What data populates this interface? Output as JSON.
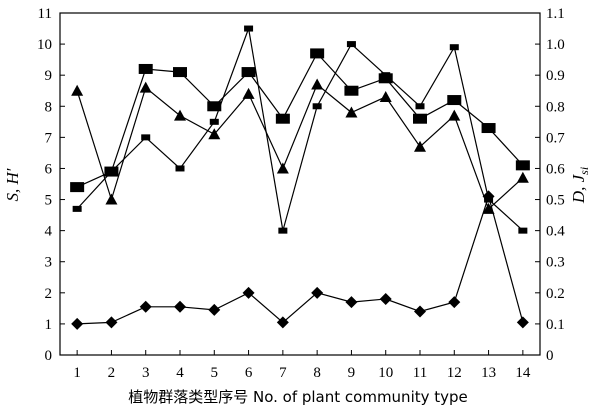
{
  "chart_data": {
    "type": "line",
    "x": [
      1,
      2,
      3,
      4,
      5,
      6,
      7,
      8,
      9,
      10,
      11,
      12,
      13,
      14
    ],
    "xlabel": "植物群落类型序号  No. of plant community type",
    "ylabel_left": "S, H′",
    "ylabel_right_main": "D, J",
    "ylabel_right_sub": "si",
    "ylim_left": [
      0,
      11
    ],
    "ylim_right": [
      0,
      1.1
    ],
    "yticks_left": [
      "0",
      "1",
      "2",
      "3",
      "4",
      "5",
      "6",
      "7",
      "8",
      "9",
      "10",
      "11"
    ],
    "yticks_right": [
      "0",
      "0.1",
      "0.2",
      "0.3",
      "0.4",
      "0.5",
      "0.6",
      "0.7",
      "0.8",
      "0.9",
      "1.0",
      "1.1"
    ],
    "xticks": [
      "1",
      "2",
      "3",
      "4",
      "5",
      "6",
      "7",
      "8",
      "9",
      "10",
      "11",
      "12",
      "13",
      "14"
    ],
    "grid": false,
    "series": [
      {
        "marker": "small-square",
        "axis": "left",
        "values": [
          4.7,
          5.9,
          7.0,
          6.0,
          7.5,
          10.5,
          4.0,
          8.0,
          10.0,
          9.0,
          8.0,
          9.9,
          5.0,
          4.0
        ]
      },
      {
        "marker": "square",
        "axis": "right",
        "values": [
          0.54,
          0.59,
          0.92,
          0.91,
          0.8,
          0.91,
          0.76,
          0.97,
          0.85,
          0.89,
          0.76,
          0.82,
          0.73,
          0.61
        ]
      },
      {
        "marker": "triangle",
        "axis": "right",
        "values": [
          0.85,
          0.5,
          0.86,
          0.77,
          0.71,
          0.84,
          0.6,
          0.87,
          0.78,
          0.83,
          0.67,
          0.77,
          0.47,
          0.57
        ]
      },
      {
        "marker": "diamond",
        "axis": "left",
        "values": [
          1.0,
          1.05,
          1.55,
          1.55,
          1.45,
          2.0,
          1.05,
          2.0,
          1.7,
          1.8,
          1.4,
          1.7,
          5.1,
          1.05
        ]
      }
    ]
  }
}
